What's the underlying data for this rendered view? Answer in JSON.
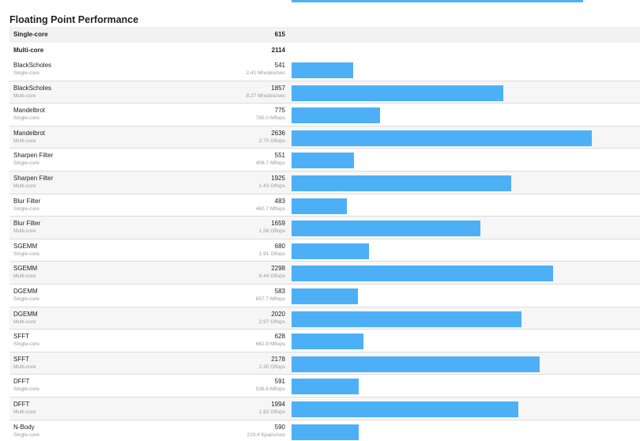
{
  "section_title": "Floating Point Performance",
  "bar_color": "#4db0f7",
  "bar_scale_max": 2636,
  "top_bar_fraction": 0.97,
  "summary": [
    {
      "label": "Single-core",
      "score": "615"
    },
    {
      "label": "Multi-core",
      "score": "2114"
    }
  ],
  "benchmarks": [
    {
      "name": "BlackScholes",
      "mode": "Single-core",
      "score": "541",
      "detail": "2.41 Mnodes/sec",
      "value": 541
    },
    {
      "name": "BlackScholes",
      "mode": "Multi-core",
      "score": "1857",
      "detail": "8.27 Mnodes/sec",
      "value": 1857
    },
    {
      "name": "Mandelbrot",
      "mode": "Single-core",
      "score": "775",
      "detail": "795.0 Mflops",
      "value": 775
    },
    {
      "name": "Mandelbrot",
      "mode": "Multi-core",
      "score": "2636",
      "detail": "2.70 Gflops",
      "value": 2636
    },
    {
      "name": "Sharpen Filter",
      "mode": "Single-core",
      "score": "551",
      "detail": "408.7 Mflops",
      "value": 551
    },
    {
      "name": "Sharpen Filter",
      "mode": "Multi-core",
      "score": "1925",
      "detail": "1.43 Gflops",
      "value": 1925
    },
    {
      "name": "Blur Filter",
      "mode": "Single-core",
      "score": "483",
      "detail": "460.7 Mflops",
      "value": 483
    },
    {
      "name": "Blur Filter",
      "mode": "Multi-core",
      "score": "1659",
      "detail": "1.58 Gflops",
      "value": 1659
    },
    {
      "name": "SGEMM",
      "mode": "Single-core",
      "score": "680",
      "detail": "1.91 Gflops",
      "value": 680
    },
    {
      "name": "SGEMM",
      "mode": "Multi-core",
      "score": "2298",
      "detail": "6.44 Gflops",
      "value": 2298
    },
    {
      "name": "DGEMM",
      "mode": "Single-core",
      "score": "583",
      "detail": "857.7 Mflops",
      "value": 583
    },
    {
      "name": "DGEMM",
      "mode": "Multi-core",
      "score": "2020",
      "detail": "2.97 Gflops",
      "value": 2020
    },
    {
      "name": "SFFT",
      "mode": "Single-core",
      "score": "628",
      "detail": "662.9 Mflops",
      "value": 628
    },
    {
      "name": "SFFT",
      "mode": "Multi-core",
      "score": "2178",
      "detail": "2.30 Gflops",
      "value": 2178
    },
    {
      "name": "DFFT",
      "mode": "Single-core",
      "score": "591",
      "detail": "538.6 Mflops",
      "value": 591
    },
    {
      "name": "DFFT",
      "mode": "Multi-core",
      "score": "1994",
      "detail": "1.82 Gflops",
      "value": 1994
    },
    {
      "name": "N-Body",
      "mode": "Single-core",
      "score": "590",
      "detail": "219.4 Kpairs/sec",
      "value": 590
    }
  ]
}
